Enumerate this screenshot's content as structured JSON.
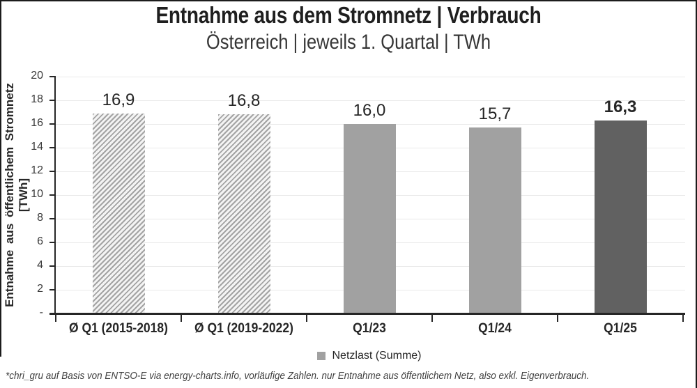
{
  "chart_data": {
    "type": "bar",
    "title": "Entnahme aus dem Stromnetz | Verbrauch",
    "subtitle": "Österreich | jeweils 1. Quartal | TWh",
    "ylabel": "Entnahme aus öffentlichem Stromnetz [TWh]",
    "xlabel": "",
    "categories": [
      "Ø Q1 (2015-2018)",
      "Ø Q1 (2019-2022)",
      "Q1/23",
      "Q1/24",
      "Q1/25"
    ],
    "values": [
      16.9,
      16.8,
      16.0,
      15.7,
      16.3
    ],
    "value_labels": [
      "16,9",
      "16,8",
      "16,0",
      "15,7",
      "16,3"
    ],
    "bar_styles": [
      "hatch",
      "hatch",
      "gray",
      "gray",
      "dark"
    ],
    "emphasized_index": 4,
    "ylim": [
      0,
      20
    ],
    "ytick_step": 2,
    "ytick_labels": [
      "-",
      "2",
      "4",
      "6",
      "8",
      "10",
      "12",
      "14",
      "16",
      "18",
      "20"
    ],
    "grid": true,
    "legend": {
      "label": "Netzlast (Summe)",
      "swatch_color": "#a1a1a1",
      "position": "bottom-center"
    },
    "colors": {
      "bar_gray": "#a1a1a1",
      "bar_dark": "#616161",
      "hatch_line": "#a3a3a3",
      "hatch_bg": "#f4f4f4",
      "grid_line": "#e9e9e9",
      "axis_line": "#262626"
    }
  },
  "footnote": "*chri_gru auf Basis von ENTSO-E via energy-charts.info, vorläufige Zahlen. nur Entnahme aus öffentlichem Netz, also exkl. Eigenverbrauch."
}
